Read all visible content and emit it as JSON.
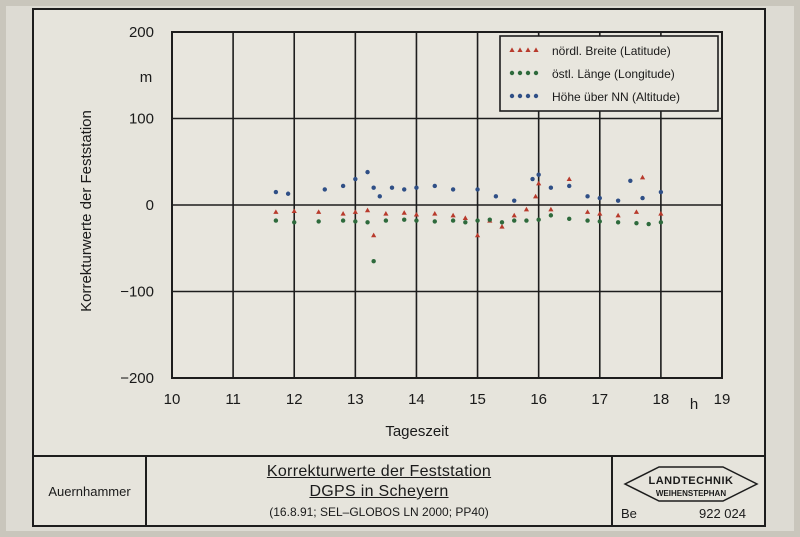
{
  "chart_data": {
    "type": "scatter",
    "ylabel": "Korrekturwerte der Feststation",
    "yunit": "m",
    "xlabel": "Tageszeit",
    "xunit": "h",
    "xlim": [
      10,
      19
    ],
    "ylim": [
      -200,
      200
    ],
    "xticks": [
      10,
      11,
      12,
      13,
      14,
      15,
      16,
      17,
      18,
      19
    ],
    "xtick_labels": [
      "10",
      "11",
      "12",
      "13",
      "14",
      "15",
      "16",
      "17",
      "18",
      "19"
    ],
    "yticks": [
      200,
      100,
      0,
      -100,
      -200
    ],
    "ytick_labels": [
      "200",
      "100",
      "0",
      "−100",
      "−200"
    ],
    "grid": true,
    "legend_position": "top-right",
    "series": [
      {
        "name": "nördl. Breite (Latitude)",
        "color": "#b83a2c",
        "marker": "triangle",
        "x": [
          11.7,
          12.0,
          12.4,
          12.8,
          13.0,
          13.2,
          13.3,
          13.5,
          13.8,
          14.0,
          14.3,
          14.6,
          14.8,
          15.0,
          15.2,
          15.4,
          15.6,
          15.8,
          15.95,
          16.0,
          16.2,
          16.5,
          16.8,
          17.0,
          17.3,
          17.6,
          17.7,
          18.0
        ],
        "y": [
          -8,
          -7,
          -8,
          -10,
          -8,
          -6,
          -35,
          -10,
          -9,
          -11,
          -10,
          -12,
          -15,
          -35,
          -18,
          -25,
          -12,
          -5,
          10,
          25,
          -5,
          30,
          -8,
          -10,
          -12,
          -8,
          32,
          -10
        ]
      },
      {
        "name": "östl. Länge (Longitude)",
        "color": "#2e6a3c",
        "marker": "circle",
        "x": [
          11.7,
          12.0,
          12.4,
          12.8,
          13.0,
          13.2,
          13.3,
          13.5,
          13.8,
          14.0,
          14.3,
          14.6,
          14.8,
          15.0,
          15.2,
          15.4,
          15.6,
          15.8,
          16.0,
          16.2,
          16.5,
          16.8,
          17.0,
          17.3,
          17.6,
          17.8,
          18.0
        ],
        "y": [
          -18,
          -20,
          -19,
          -18,
          -19,
          -20,
          -65,
          -18,
          -17,
          -18,
          -19,
          -18,
          -20,
          -18,
          -17,
          -20,
          -18,
          -18,
          -17,
          -12,
          -16,
          -18,
          -19,
          -20,
          -21,
          -22,
          -20
        ]
      },
      {
        "name": "Höhe über NN (Altitude)",
        "color": "#2f4f86",
        "marker": "circle",
        "x": [
          11.7,
          11.9,
          12.5,
          12.8,
          13.0,
          13.2,
          13.3,
          13.4,
          13.6,
          13.8,
          14.0,
          14.3,
          14.6,
          15.0,
          15.3,
          15.6,
          15.9,
          16.0,
          16.2,
          16.5,
          16.8,
          17.0,
          17.3,
          17.5,
          17.7,
          18.0
        ],
        "y": [
          15,
          13,
          18,
          22,
          30,
          38,
          20,
          10,
          20,
          18,
          20,
          22,
          18,
          18,
          10,
          5,
          30,
          35,
          20,
          22,
          10,
          8,
          5,
          28,
          8,
          15
        ]
      }
    ]
  },
  "title_block": {
    "author": "Auernhammer",
    "title_line1": "Korrekturwerte der Feststation",
    "title_line2": "DGPS in Scheyern",
    "subtitle": "(16.8.91; SEL–GLOBOS LN 2000; PP40)",
    "logo_top": "LANDTECHNIK",
    "logo_bottom": "WEIHENSTEPHAN",
    "code": "Be",
    "number": "922 024"
  }
}
